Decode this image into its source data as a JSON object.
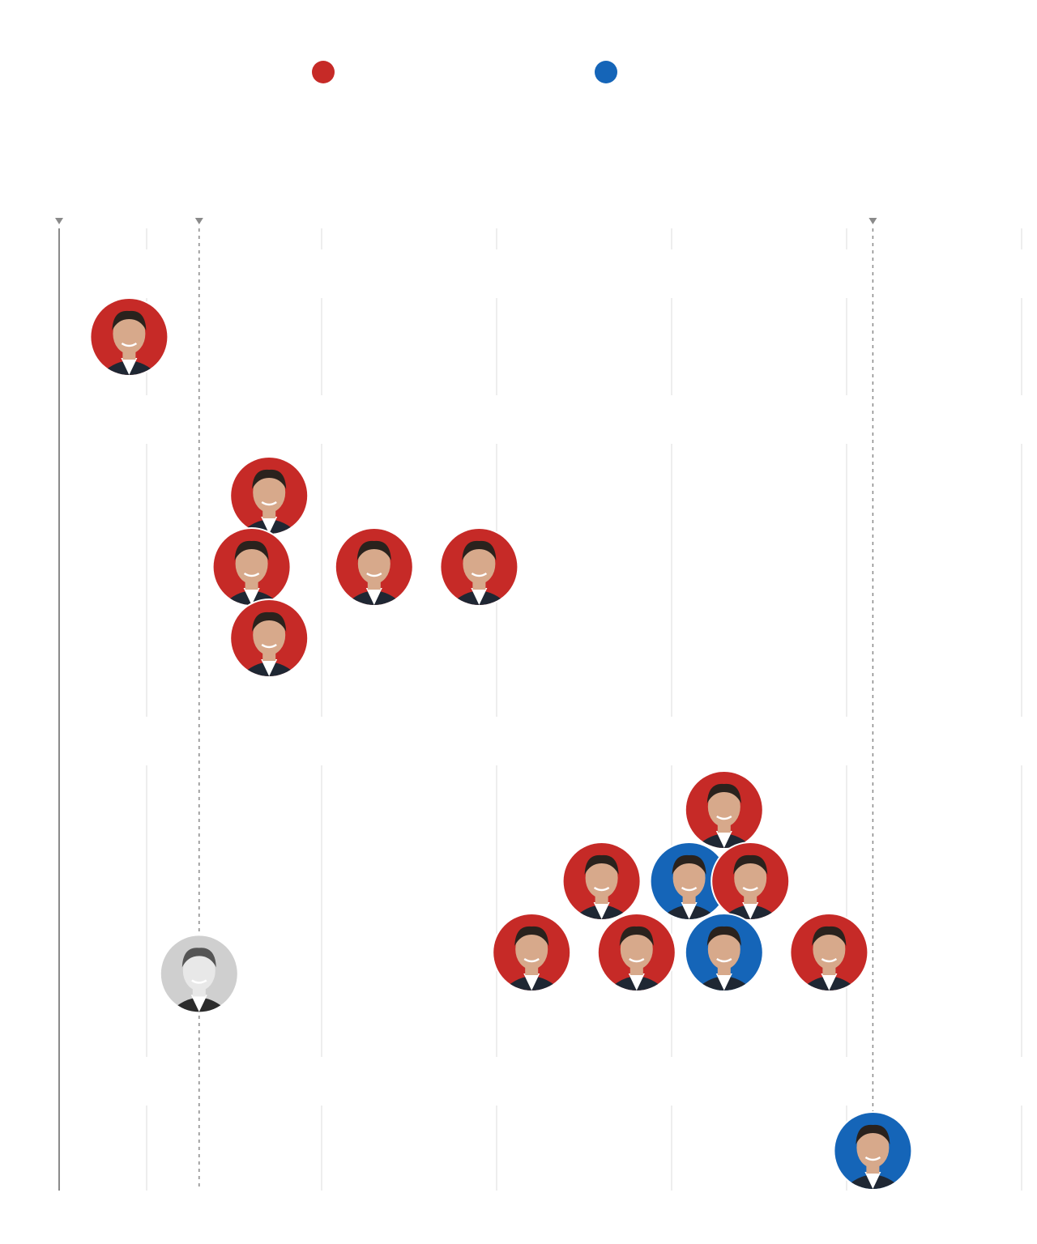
{
  "chart_data": {
    "type": "scatter",
    "title": "",
    "subtitle": "",
    "xlabel": "",
    "ylabel": "",
    "colors": {
      "republican": "#c62a27",
      "democrat": "#1565b8",
      "historical": "#cfcfcf",
      "gridline": "#dddddd",
      "axis": "#8a8a8a",
      "reference": "#8a8a8a"
    },
    "legend": [
      {
        "party": "republican",
        "label": ""
      },
      {
        "party": "democrat",
        "label": ""
      }
    ],
    "xlim": [
      0,
      5.5
    ],
    "gridlines_x": [
      0.5,
      1.5,
      2.5,
      3.5,
      4.5,
      5.5
    ],
    "reference_lines_x": [
      0,
      0.8,
      4.65
    ],
    "groups": [
      {
        "name": "",
        "ylevel": 1
      },
      {
        "name": "",
        "ylevel": 2
      },
      {
        "name": "",
        "ylevel": 3
      },
      {
        "name": "",
        "ylevel": 4
      }
    ],
    "points": [
      {
        "x": 0.4,
        "group": 1,
        "stack": 0,
        "party": "republican",
        "icon": "candidate-portrait-icon"
      },
      {
        "x": 1.2,
        "group": 2,
        "stack": 1,
        "party": "republican",
        "icon": "candidate-portrait-icon"
      },
      {
        "x": 1.1,
        "group": 2,
        "stack": 0,
        "party": "republican",
        "icon": "candidate-portrait-icon"
      },
      {
        "x": 1.2,
        "group": 2,
        "stack": -1,
        "party": "republican",
        "icon": "candidate-portrait-icon"
      },
      {
        "x": 1.8,
        "group": 2,
        "stack": 0,
        "party": "republican",
        "icon": "candidate-portrait-icon"
      },
      {
        "x": 2.4,
        "group": 2,
        "stack": 0,
        "party": "republican",
        "icon": "candidate-portrait-icon"
      },
      {
        "x": 3.8,
        "group": 3,
        "stack": 2,
        "party": "republican",
        "icon": "candidate-portrait-icon"
      },
      {
        "x": 3.1,
        "group": 3,
        "stack": 1,
        "party": "republican",
        "icon": "candidate-portrait-icon"
      },
      {
        "x": 3.6,
        "group": 3,
        "stack": 1,
        "party": "democrat",
        "icon": "candidate-portrait-icon"
      },
      {
        "x": 3.95,
        "group": 3,
        "stack": 1,
        "party": "republican",
        "icon": "candidate-portrait-icon"
      },
      {
        "x": 2.7,
        "group": 3,
        "stack": 0,
        "party": "republican",
        "icon": "candidate-portrait-icon"
      },
      {
        "x": 3.3,
        "group": 3,
        "stack": 0,
        "party": "republican",
        "icon": "candidate-portrait-icon"
      },
      {
        "x": 3.8,
        "group": 3,
        "stack": 0,
        "party": "democrat",
        "icon": "candidate-portrait-icon"
      },
      {
        "x": 4.4,
        "group": 3,
        "stack": 0,
        "party": "republican",
        "icon": "candidate-portrait-icon"
      },
      {
        "x": 0.8,
        "group": 3,
        "stack": -0.3,
        "party": "historical",
        "icon": "historical-portrait-icon"
      },
      {
        "x": 4.65,
        "group": 4,
        "stack": 0,
        "party": "democrat",
        "icon": "candidate-portrait-icon"
      }
    ]
  }
}
